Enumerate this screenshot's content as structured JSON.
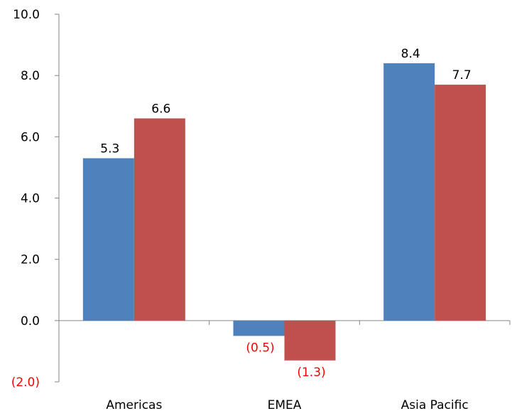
{
  "chart_data": {
    "type": "bar",
    "categories": [
      "Americas",
      "EMEA",
      "Asia Pacific"
    ],
    "series": [
      {
        "values": [
          5.3,
          -0.5,
          8.4
        ],
        "data_labels": [
          "5.3",
          "(0.5)",
          "8.4"
        ],
        "color": "#4f81bd"
      },
      {
        "values": [
          6.6,
          -1.3,
          7.7
        ],
        "data_labels": [
          "6.6",
          "(1.3)",
          "7.7"
        ],
        "color": "#c0504d"
      }
    ],
    "ylim": [
      -2.0,
      10.0
    ],
    "yticks": [
      10.0,
      8.0,
      6.0,
      4.0,
      2.0,
      0.0,
      -2.0
    ],
    "ytick_labels": [
      "10.0",
      "8.0",
      "6.0",
      "4.0",
      "2.0",
      "0.0",
      "(2.0)"
    ],
    "negative_label_color": "#ff0000",
    "positive_label_color": "#000000",
    "grid": false,
    "legend": "none",
    "title": "",
    "xlabel": "",
    "ylabel": ""
  }
}
